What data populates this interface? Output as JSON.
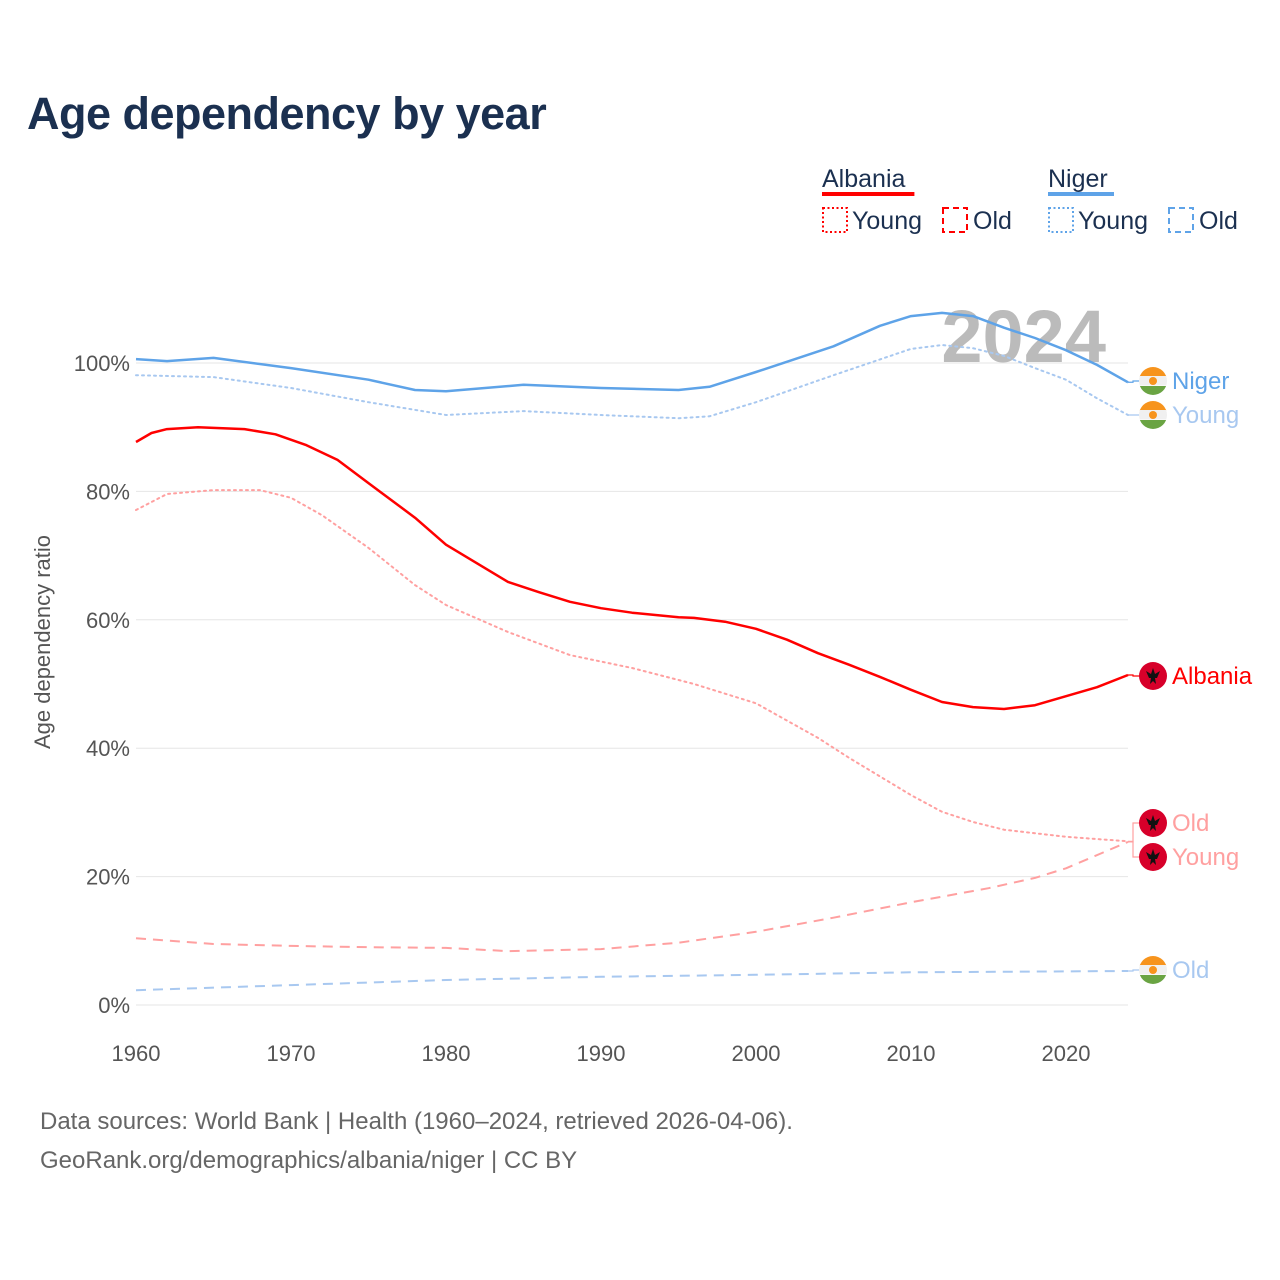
{
  "chart_data": {
    "type": "line",
    "title": "Age dependency by year",
    "xlabel": "",
    "ylabel": "Age dependency ratio",
    "xlim": [
      1960,
      2024
    ],
    "ylim": [
      0,
      110
    ],
    "x_ticks": [
      "1960",
      "1970",
      "1980",
      "1990",
      "2000",
      "2010",
      "2020"
    ],
    "y_ticks": [
      "0%",
      "20%",
      "40%",
      "60%",
      "80%",
      "100%"
    ],
    "y_tick_values": [
      0,
      20,
      40,
      60,
      80,
      100
    ],
    "grid": true,
    "year_watermark": "2024",
    "legend": {
      "placement": "top-right",
      "groups": [
        {
          "country": "Albania",
          "items": [
            "Young",
            "Old"
          ],
          "color": "#ff0000"
        },
        {
          "country": "Niger",
          "items": [
            "Young",
            "Old"
          ],
          "color": "#5ea3e8"
        }
      ]
    },
    "colors": {
      "albania": "#ff0000",
      "albania_light": "#ffa0a0",
      "niger": "#5ea3e8",
      "niger_light": "#a8c8f0"
    },
    "series": [
      {
        "name": "Niger",
        "end_label": "Niger",
        "style": "solid",
        "color": "#5ea3e8",
        "x": [
          1960,
          1962,
          1965,
          1970,
          1975,
          1978,
          1980,
          1985,
          1990,
          1995,
          1997,
          2000,
          2005,
          2008,
          2010,
          2012,
          2014,
          2016,
          2018,
          2020,
          2022,
          2024
        ],
        "y": [
          100.6,
          100.3,
          100.8,
          99.2,
          97.4,
          95.8,
          95.6,
          96.6,
          96.1,
          95.8,
          96.3,
          98.6,
          102.6,
          105.8,
          107.3,
          107.8,
          107.3,
          105.5,
          103.9,
          102.0,
          99.7,
          97.0
        ]
      },
      {
        "name": "Niger Young",
        "end_label": "Young",
        "style": "dotted",
        "color": "#a8c8f0",
        "x": [
          1960,
          1965,
          1970,
          1975,
          1980,
          1985,
          1990,
          1995,
          1997,
          2000,
          2005,
          2010,
          2012,
          2014,
          2016,
          2018,
          2020,
          2022,
          2024
        ],
        "y": [
          98.1,
          97.8,
          96.1,
          93.9,
          91.9,
          92.5,
          91.9,
          91.4,
          91.7,
          93.9,
          98.1,
          102.2,
          102.8,
          102.3,
          101.1,
          99.2,
          97.4,
          94.5,
          91.9
        ]
      },
      {
        "name": "Niger Old",
        "end_label": "Old",
        "style": "dashed",
        "color": "#a8c8f0",
        "x": [
          1960,
          1970,
          1980,
          1990,
          2000,
          2010,
          2024
        ],
        "y": [
          2.3,
          3.1,
          3.9,
          4.4,
          4.7,
          5.1,
          5.3
        ]
      },
      {
        "name": "Albania",
        "end_label": "Albania",
        "style": "solid",
        "color": "#ff0000",
        "x": [
          1960,
          1961,
          1962,
          1964,
          1967,
          1969,
          1971,
          1973,
          1975,
          1978,
          1980,
          1982,
          1984,
          1986,
          1988,
          1990,
          1992,
          1995,
          1996,
          1998,
          2000,
          2002,
          2004,
          2006,
          2008,
          2010,
          2012,
          2014,
          2016,
          2018,
          2020,
          2022,
          2024
        ],
        "y": [
          87.7,
          89.1,
          89.7,
          90.0,
          89.7,
          88.9,
          87.2,
          84.9,
          81.3,
          75.9,
          71.7,
          68.8,
          65.9,
          64.3,
          62.8,
          61.8,
          61.1,
          60.4,
          60.3,
          59.7,
          58.6,
          56.9,
          54.8,
          53.0,
          51.1,
          49.1,
          47.2,
          46.4,
          46.1,
          46.7,
          48.1,
          49.5,
          51.4
        ]
      },
      {
        "name": "Albania Young",
        "end_label": "Young",
        "style": "dotted",
        "color": "#ffa0a0",
        "x": [
          1960,
          1962,
          1965,
          1968,
          1970,
          1972,
          1975,
          1978,
          1980,
          1984,
          1988,
          1992,
          1996,
          2000,
          2004,
          2006,
          2010,
          2012,
          2014,
          2016,
          2020,
          2024
        ],
        "y": [
          77.1,
          79.6,
          80.2,
          80.2,
          79.0,
          76.3,
          71.2,
          65.4,
          62.3,
          58.1,
          54.5,
          52.5,
          50.0,
          47.0,
          41.6,
          38.5,
          32.7,
          30.1,
          28.5,
          27.3,
          26.2,
          25.5
        ]
      },
      {
        "name": "Albania Old",
        "end_label": "Old",
        "style": "dashed",
        "color": "#ffa0a0",
        "x": [
          1960,
          1965,
          1970,
          1975,
          1980,
          1984,
          1990,
          1995,
          2000,
          2005,
          2010,
          2015,
          2018,
          2020,
          2024
        ],
        "y": [
          10.4,
          9.5,
          9.2,
          9.0,
          8.9,
          8.4,
          8.7,
          9.7,
          11.4,
          13.6,
          16.0,
          18.2,
          19.8,
          21.3,
          25.4
        ]
      }
    ]
  },
  "sources": {
    "line1": "Data sources: World Bank | Health (1960–2024, retrieved 2026-04-06).",
    "line2": "GeoRank.org/demographics/albania/niger | CC BY"
  }
}
